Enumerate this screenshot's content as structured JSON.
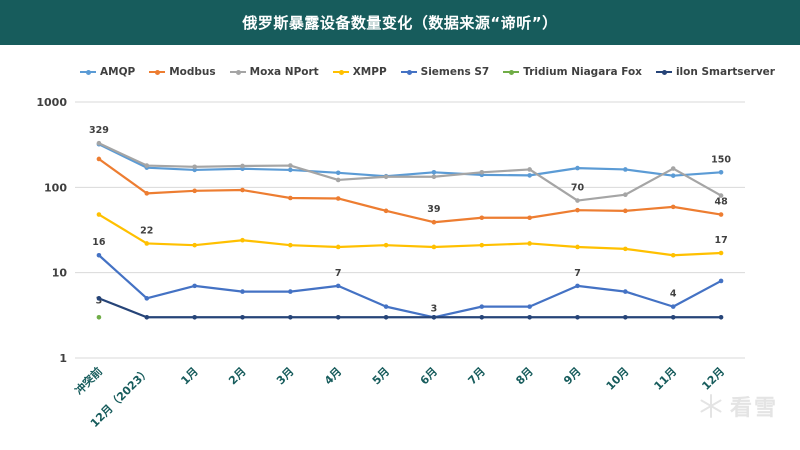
{
  "title": "俄罗斯暴露设备数量变化（数据来源“谛听”）",
  "watermark": "看雪",
  "chart_data": {
    "type": "line",
    "log_scale": true,
    "ylim": [
      1,
      1000
    ],
    "yticks": [
      "1",
      "10",
      "100",
      "1000"
    ],
    "grid": true,
    "legend_position": "top",
    "categories": [
      "冲突前",
      "12月（2023）",
      "1月",
      "2月",
      "3月",
      "4月",
      "5月",
      "6月",
      "7月",
      "8月",
      "9月",
      "10月",
      "11月",
      "12月"
    ],
    "series": [
      {
        "name": "AMQP",
        "color": "#5b9bd5",
        "values": [
          320,
          170,
          160,
          165,
          160,
          148,
          135,
          150,
          140,
          138,
          168,
          162,
          137,
          150
        ],
        "labels": [
          null,
          null,
          null,
          null,
          null,
          null,
          null,
          null,
          null,
          null,
          null,
          null,
          null,
          "150"
        ]
      },
      {
        "name": "Modbus",
        "color": "#ed7d31",
        "values": [
          215,
          85,
          91,
          93,
          75,
          74,
          53,
          39,
          44,
          44,
          54,
          53,
          59,
          48
        ],
        "labels": [
          null,
          null,
          null,
          null,
          null,
          null,
          null,
          "39",
          null,
          null,
          null,
          null,
          null,
          "48"
        ]
      },
      {
        "name": "Moxa NPort",
        "color": "#a5a5a5",
        "values": [
          329,
          180,
          174,
          178,
          180,
          122,
          133,
          133,
          150,
          162,
          70,
          82,
          166,
          80
        ],
        "labels": [
          "329",
          null,
          null,
          null,
          null,
          null,
          null,
          null,
          null,
          null,
          "70",
          null,
          null,
          null
        ]
      },
      {
        "name": "XMPP",
        "color": "#ffc000",
        "values": [
          48,
          22,
          21,
          24,
          21,
          20,
          21,
          20,
          21,
          22,
          20,
          19,
          16,
          17
        ],
        "labels": [
          null,
          "22",
          null,
          null,
          null,
          null,
          null,
          null,
          null,
          null,
          null,
          null,
          null,
          "17"
        ]
      },
      {
        "name": "Siemens S7",
        "color": "#4472c4",
        "values": [
          16,
          5,
          7,
          6,
          6,
          7,
          4,
          3,
          4,
          4,
          7,
          6,
          4,
          8
        ],
        "labels": [
          "16",
          null,
          null,
          null,
          null,
          "7",
          null,
          "3",
          null,
          null,
          "7",
          null,
          "4",
          null
        ]
      },
      {
        "name": "Tridium Niagara Fox",
        "color": "#70ad47",
        "values": [
          3,
          null,
          null,
          null,
          null,
          null,
          null,
          null,
          null,
          null,
          null,
          null,
          null,
          null
        ],
        "labels": [
          "3",
          null,
          null,
          null,
          null,
          null,
          null,
          null,
          null,
          null,
          null,
          null,
          null,
          null
        ]
      },
      {
        "name": "ilon Smartserver",
        "color": "#264478",
        "values": [
          5,
          3,
          3,
          3,
          3,
          3,
          3,
          3,
          3,
          3,
          3,
          3,
          3,
          3
        ],
        "labels": [
          null,
          null,
          null,
          null,
          null,
          null,
          null,
          null,
          null,
          null,
          null,
          null,
          null,
          null
        ]
      }
    ]
  }
}
